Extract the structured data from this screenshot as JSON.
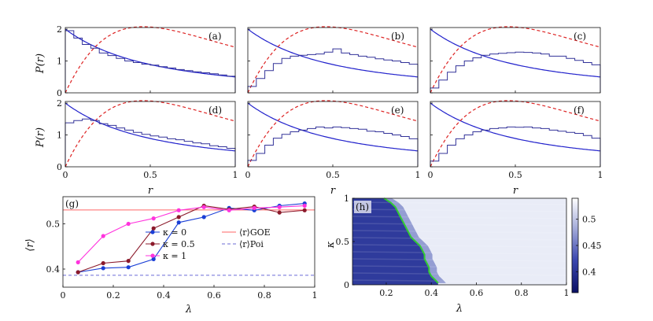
{
  "chart_data": [
    {
      "type": "line",
      "panel": "(a)",
      "xlabel": "",
      "ylabel": "P(r)",
      "xlim": [
        0,
        1
      ],
      "ylim": [
        0,
        2.05
      ],
      "xticks": [],
      "yticks": [
        0,
        1,
        2
      ],
      "series": [
        {
          "color": "#2222cc",
          "kind": "curve",
          "fn": "poisson"
        },
        {
          "color": "#dd2222",
          "kind": "curve",
          "fn": "goe",
          "dashed": true
        },
        {
          "color": "#333399",
          "kind": "hist",
          "values": [
            1.95,
            1.72,
            1.52,
            1.4,
            1.25,
            1.17,
            1.08,
            1.0,
            0.95,
            0.9,
            0.87,
            0.82,
            0.78,
            0.73,
            0.7,
            0.66,
            0.63,
            0.6,
            0.56,
            0.52
          ]
        }
      ]
    },
    {
      "type": "line",
      "panel": "(b)",
      "xlabel": "",
      "ylabel": "",
      "xlim": [
        0,
        1
      ],
      "ylim": [
        0,
        2.05
      ],
      "xticks": [],
      "yticks": [],
      "series": [
        {
          "color": "#2222cc",
          "kind": "curve",
          "fn": "poisson"
        },
        {
          "color": "#dd2222",
          "kind": "curve",
          "fn": "goe",
          "dashed": true
        },
        {
          "color": "#333399",
          "kind": "hist",
          "values": [
            0.2,
            0.45,
            0.7,
            0.92,
            1.08,
            1.15,
            1.18,
            1.2,
            1.22,
            1.28,
            1.38,
            1.25,
            1.2,
            1.15,
            1.12,
            1.07,
            1.03,
            1.0,
            0.95,
            0.9
          ]
        }
      ]
    },
    {
      "type": "line",
      "panel": "(c)",
      "xlabel": "",
      "ylabel": "",
      "xlim": [
        0,
        1
      ],
      "ylim": [
        0,
        2.05
      ],
      "xticks": [],
      "yticks": [],
      "series": [
        {
          "color": "#2222cc",
          "kind": "curve",
          "fn": "poisson"
        },
        {
          "color": "#dd2222",
          "kind": "curve",
          "fn": "goe",
          "dashed": true
        },
        {
          "color": "#333399",
          "kind": "hist",
          "values": [
            0.15,
            0.4,
            0.65,
            0.85,
            1.0,
            1.1,
            1.18,
            1.22,
            1.24,
            1.26,
            1.28,
            1.27,
            1.25,
            1.22,
            1.15,
            1.15,
            1.08,
            1.02,
            0.95,
            0.88
          ]
        }
      ]
    },
    {
      "type": "line",
      "panel": "(d)",
      "xlabel": "",
      "ylabel": "P(r)",
      "xlim": [
        0,
        1
      ],
      "ylim": [
        0,
        2.05
      ],
      "xticks": [
        0,
        0.5,
        1
      ],
      "yticks": [
        0,
        1,
        2
      ],
      "series": [
        {
          "color": "#2222cc",
          "kind": "curve",
          "fn": "poisson"
        },
        {
          "color": "#dd2222",
          "kind": "curve",
          "fn": "goe",
          "dashed": true
        },
        {
          "color": "#333399",
          "kind": "hist",
          "values": [
            1.38,
            1.45,
            1.5,
            1.45,
            1.35,
            1.3,
            1.22,
            1.15,
            1.08,
            1.02,
            0.97,
            0.93,
            0.88,
            0.85,
            0.8,
            0.75,
            0.72,
            0.66,
            0.63,
            0.58
          ]
        }
      ]
    },
    {
      "type": "line",
      "panel": "(e)",
      "xlabel": "",
      "ylabel": "",
      "xlim": [
        0,
        1
      ],
      "ylim": [
        0,
        2.05
      ],
      "xticks": [
        0,
        0.5,
        1
      ],
      "yticks": [],
      "series": [
        {
          "color": "#2222cc",
          "kind": "curve",
          "fn": "poisson"
        },
        {
          "color": "#dd2222",
          "kind": "curve",
          "fn": "goe",
          "dashed": true
        },
        {
          "color": "#333399",
          "kind": "hist",
          "values": [
            0.2,
            0.42,
            0.68,
            0.9,
            1.02,
            1.1,
            1.15,
            1.2,
            1.25,
            1.22,
            1.25,
            1.23,
            1.2,
            1.18,
            1.12,
            1.1,
            1.05,
            1.0,
            0.95,
            0.88
          ]
        }
      ]
    },
    {
      "type": "line",
      "panel": "(f)",
      "xlabel": "",
      "ylabel": "",
      "xlim": [
        0,
        1
      ],
      "ylim": [
        0,
        2.05
      ],
      "xticks": [
        0,
        0.5,
        1
      ],
      "yticks": [],
      "series": [
        {
          "color": "#2222cc",
          "kind": "curve",
          "fn": "poisson"
        },
        {
          "color": "#dd2222",
          "kind": "curve",
          "fn": "goe",
          "dashed": true
        },
        {
          "color": "#333399",
          "kind": "hist",
          "values": [
            0.18,
            0.42,
            0.68,
            0.88,
            1.0,
            1.1,
            1.15,
            1.2,
            1.22,
            1.25,
            1.24,
            1.25,
            1.22,
            1.2,
            1.15,
            1.12,
            1.08,
            1.05,
            0.98,
            0.9
          ]
        }
      ]
    },
    {
      "type": "line",
      "panel": "(g)",
      "xlabel": "λ",
      "ylabel": "⟨r⟩",
      "xlim": [
        0,
        1
      ],
      "ylim": [
        0.36,
        0.56
      ],
      "xticks": [
        0,
        0.2,
        0.4,
        0.6,
        0.8,
        1
      ],
      "yticks": [
        0.4,
        0.5
      ],
      "legend": [
        {
          "label": "κ = 0",
          "color": "#1a3fd6",
          "marker": true
        },
        {
          "label": "⟨r⟩GOE",
          "color": "#ff6666",
          "marker": false
        },
        {
          "label": "κ = 0.5",
          "color": "#8b1a2b",
          "marker": true
        },
        {
          "label": "⟨r⟩Poi",
          "color": "#6b6bd6",
          "marker": false,
          "dashed": true
        },
        {
          "label": "κ = 1",
          "color": "#ff33dd",
          "marker": true
        }
      ],
      "hlines": [
        {
          "y": 0.5307,
          "color": "#ff6666"
        },
        {
          "y": 0.3863,
          "color": "#6b6bd6",
          "dashed": true
        }
      ],
      "x": [
        0.06,
        0.16,
        0.26,
        0.36,
        0.46,
        0.56,
        0.66,
        0.76,
        0.86,
        0.96
      ],
      "series": [
        {
          "name": "κ = 0",
          "color": "#1a3fd6",
          "values": [
            0.393,
            0.402,
            0.404,
            0.422,
            0.503,
            0.515,
            0.535,
            0.53,
            0.54,
            0.545
          ]
        },
        {
          "name": "κ = 0.5",
          "color": "#8b1a2b",
          "values": [
            0.393,
            0.413,
            0.418,
            0.49,
            0.515,
            0.54,
            0.532,
            0.538,
            0.525,
            0.53
          ]
        },
        {
          "name": "κ = 1",
          "color": "#ff33dd",
          "values": [
            0.415,
            0.473,
            0.5,
            0.512,
            0.53,
            0.537,
            0.53,
            0.535,
            0.537,
            0.54
          ]
        }
      ]
    },
    {
      "type": "heatmap",
      "panel": "(h)",
      "xlabel": "λ",
      "ylabel": "κ",
      "xlim": [
        0.05,
        1.0
      ],
      "ylim": [
        0,
        1
      ],
      "xticks": [
        0.2,
        0.4,
        0.6,
        0.8,
        1
      ],
      "yticks": [
        0,
        0.5,
        1
      ],
      "colorbar": {
        "ticks": [
          0.4,
          0.45,
          0.5
        ],
        "min": 0.36,
        "max": 0.54
      },
      "boundary_color": "#33cc33",
      "boundary": {
        "kappa": [
          1.0,
          0.95,
          0.9,
          0.85,
          0.8,
          0.75,
          0.7,
          0.65,
          0.6,
          0.55,
          0.5,
          0.45,
          0.4,
          0.35,
          0.3,
          0.25,
          0.2,
          0.15,
          0.1,
          0.05,
          0.02
        ],
        "lambda": [
          0.19,
          0.22,
          0.24,
          0.25,
          0.26,
          0.27,
          0.28,
          0.29,
          0.3,
          0.31,
          0.33,
          0.35,
          0.36,
          0.37,
          0.37,
          0.38,
          0.39,
          0.39,
          0.4,
          0.42,
          0.43
        ]
      }
    }
  ]
}
